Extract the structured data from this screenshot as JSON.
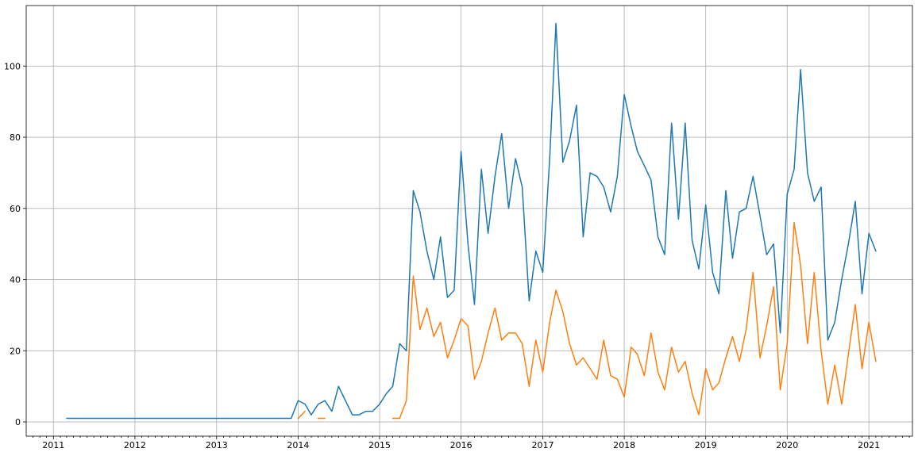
{
  "chart_data": {
    "type": "line",
    "title": "",
    "xlabel": "",
    "ylabel": "",
    "grid": true,
    "xlim": [
      "2010-09-01",
      "2021-07-15"
    ],
    "ylim": [
      -4,
      117
    ],
    "x_ticks": [
      "2011",
      "2012",
      "2013",
      "2014",
      "2015",
      "2016",
      "2017",
      "2018",
      "2019",
      "2020",
      "2021"
    ],
    "y_ticks": [
      0,
      20,
      40,
      60,
      80,
      100
    ],
    "series": [
      {
        "color": "#1f77b4",
        "points": [
          [
            "2011-03",
            1
          ],
          [
            "2011-04",
            1
          ],
          [
            "2011-05",
            1
          ],
          [
            "2011-06",
            1
          ],
          [
            "2011-07",
            1
          ],
          [
            "2011-08",
            1
          ],
          [
            "2011-09",
            1
          ],
          [
            "2011-10",
            1
          ],
          [
            "2011-11",
            1
          ],
          [
            "2011-12",
            1
          ],
          [
            "2012-01",
            1
          ],
          [
            "2012-02",
            1
          ],
          [
            "2012-03",
            1
          ],
          [
            "2012-04",
            1
          ],
          [
            "2012-05",
            1
          ],
          [
            "2012-06",
            1
          ],
          [
            "2012-07",
            1
          ],
          [
            "2012-08",
            1
          ],
          [
            "2012-09",
            1
          ],
          [
            "2012-10",
            1
          ],
          [
            "2012-11",
            1
          ],
          [
            "2012-12",
            1
          ],
          [
            "2013-01",
            1
          ],
          [
            "2013-02",
            1
          ],
          [
            "2013-03",
            1
          ],
          [
            "2013-04",
            1
          ],
          [
            "2013-05",
            1
          ],
          [
            "2013-06",
            1
          ],
          [
            "2013-07",
            1
          ],
          [
            "2013-08",
            1
          ],
          [
            "2013-09",
            1
          ],
          [
            "2013-10",
            1
          ],
          [
            "2013-11",
            1
          ],
          [
            "2013-12",
            1
          ],
          [
            "2014-01",
            6
          ],
          [
            "2014-02",
            5
          ],
          [
            "2014-03",
            2
          ],
          [
            "2014-04",
            5
          ],
          [
            "2014-05",
            6
          ],
          [
            "2014-06",
            3
          ],
          [
            "2014-07",
            10
          ],
          [
            "2014-08",
            6
          ],
          [
            "2014-09",
            2
          ],
          [
            "2014-10",
            2
          ],
          [
            "2014-11",
            3
          ],
          [
            "2014-12",
            3
          ],
          [
            "2015-01",
            5
          ],
          [
            "2015-02",
            8
          ],
          [
            "2015-03",
            10
          ],
          [
            "2015-04",
            22
          ],
          [
            "2015-05",
            20
          ],
          [
            "2015-06",
            65
          ],
          [
            "2015-07",
            59
          ],
          [
            "2015-08",
            48
          ],
          [
            "2015-09",
            40
          ],
          [
            "2015-10",
            52
          ],
          [
            "2015-11",
            35
          ],
          [
            "2015-12",
            37
          ],
          [
            "2016-01",
            76
          ],
          [
            "2016-02",
            50
          ],
          [
            "2016-03",
            33
          ],
          [
            "2016-04",
            71
          ],
          [
            "2016-05",
            53
          ],
          [
            "2016-06",
            69
          ],
          [
            "2016-07",
            81
          ],
          [
            "2016-08",
            60
          ],
          [
            "2016-09",
            74
          ],
          [
            "2016-10",
            66
          ],
          [
            "2016-11",
            34
          ],
          [
            "2016-12",
            48
          ],
          [
            "2017-01",
            42
          ],
          [
            "2017-02",
            74
          ],
          [
            "2017-03",
            112
          ],
          [
            "2017-04",
            73
          ],
          [
            "2017-05",
            79
          ],
          [
            "2017-06",
            89
          ],
          [
            "2017-07",
            52
          ],
          [
            "2017-08",
            70
          ],
          [
            "2017-09",
            69
          ],
          [
            "2017-10",
            66
          ],
          [
            "2017-11",
            59
          ],
          [
            "2017-12",
            69
          ],
          [
            "2018-01",
            92
          ],
          [
            "2018-02",
            83
          ],
          [
            "2018-03",
            76
          ],
          [
            "2018-04",
            72
          ],
          [
            "2018-05",
            68
          ],
          [
            "2018-06",
            52
          ],
          [
            "2018-07",
            47
          ],
          [
            "2018-08",
            84
          ],
          [
            "2018-09",
            57
          ],
          [
            "2018-10",
            84
          ],
          [
            "2018-11",
            51
          ],
          [
            "2018-12",
            43
          ],
          [
            "2019-01",
            61
          ],
          [
            "2019-02",
            42
          ],
          [
            "2019-03",
            36
          ],
          [
            "2019-04",
            65
          ],
          [
            "2019-05",
            46
          ],
          [
            "2019-06",
            59
          ],
          [
            "2019-07",
            60
          ],
          [
            "2019-08",
            69
          ],
          [
            "2019-09",
            58
          ],
          [
            "2019-10",
            47
          ],
          [
            "2019-11",
            50
          ],
          [
            "2019-12",
            25
          ],
          [
            "2020-01",
            64
          ],
          [
            "2020-02",
            71
          ],
          [
            "2020-03",
            99
          ],
          [
            "2020-04",
            70
          ],
          [
            "2020-05",
            62
          ],
          [
            "2020-06",
            66
          ],
          [
            "2020-07",
            23
          ],
          [
            "2020-08",
            28
          ],
          [
            "2020-09",
            40
          ],
          [
            "2020-10",
            50
          ],
          [
            "2020-11",
            62
          ],
          [
            "2020-12",
            36
          ],
          [
            "2021-01",
            53
          ],
          [
            "2021-02",
            48
          ]
        ]
      },
      {
        "color": "#ff7f0e",
        "points": [
          [
            "2014-01",
            1
          ],
          [
            "2014-02",
            3
          ],
          [
            "2014-03",
            null
          ],
          [
            "2014-04",
            1
          ],
          [
            "2014-05",
            1
          ],
          [
            "2014-06",
            null
          ],
          [
            "2015-03",
            1
          ],
          [
            "2015-04",
            1
          ],
          [
            "2015-05",
            6
          ],
          [
            "2015-06",
            41
          ],
          [
            "2015-07",
            26
          ],
          [
            "2015-08",
            32
          ],
          [
            "2015-09",
            24
          ],
          [
            "2015-10",
            28
          ],
          [
            "2015-11",
            18
          ],
          [
            "2015-12",
            23
          ],
          [
            "2016-01",
            29
          ],
          [
            "2016-02",
            27
          ],
          [
            "2016-03",
            12
          ],
          [
            "2016-04",
            17
          ],
          [
            "2016-05",
            25
          ],
          [
            "2016-06",
            32
          ],
          [
            "2016-07",
            23
          ],
          [
            "2016-08",
            25
          ],
          [
            "2016-09",
            25
          ],
          [
            "2016-10",
            22
          ],
          [
            "2016-11",
            10
          ],
          [
            "2016-12",
            23
          ],
          [
            "2017-01",
            14
          ],
          [
            "2017-02",
            28
          ],
          [
            "2017-03",
            37
          ],
          [
            "2017-04",
            31
          ],
          [
            "2017-05",
            22
          ],
          [
            "2017-06",
            16
          ],
          [
            "2017-07",
            18
          ],
          [
            "2017-08",
            15
          ],
          [
            "2017-09",
            12
          ],
          [
            "2017-10",
            23
          ],
          [
            "2017-11",
            13
          ],
          [
            "2017-12",
            12
          ],
          [
            "2018-01",
            7
          ],
          [
            "2018-02",
            21
          ],
          [
            "2018-03",
            19
          ],
          [
            "2018-04",
            13
          ],
          [
            "2018-05",
            25
          ],
          [
            "2018-06",
            14
          ],
          [
            "2018-07",
            9
          ],
          [
            "2018-08",
            21
          ],
          [
            "2018-09",
            14
          ],
          [
            "2018-10",
            17
          ],
          [
            "2018-11",
            8
          ],
          [
            "2018-12",
            2
          ],
          [
            "2019-01",
            15
          ],
          [
            "2019-02",
            9
          ],
          [
            "2019-03",
            11
          ],
          [
            "2019-04",
            18
          ],
          [
            "2019-05",
            24
          ],
          [
            "2019-06",
            17
          ],
          [
            "2019-07",
            26
          ],
          [
            "2019-08",
            42
          ],
          [
            "2019-09",
            18
          ],
          [
            "2019-10",
            27
          ],
          [
            "2019-11",
            38
          ],
          [
            "2019-12",
            9
          ],
          [
            "2020-01",
            22
          ],
          [
            "2020-02",
            56
          ],
          [
            "2020-03",
            44
          ],
          [
            "2020-04",
            22
          ],
          [
            "2020-05",
            42
          ],
          [
            "2020-06",
            20
          ],
          [
            "2020-07",
            5
          ],
          [
            "2020-08",
            16
          ],
          [
            "2020-09",
            5
          ],
          [
            "2020-10",
            19
          ],
          [
            "2020-11",
            33
          ],
          [
            "2020-12",
            15
          ],
          [
            "2021-01",
            28
          ],
          [
            "2021-02",
            17
          ]
        ]
      }
    ]
  }
}
